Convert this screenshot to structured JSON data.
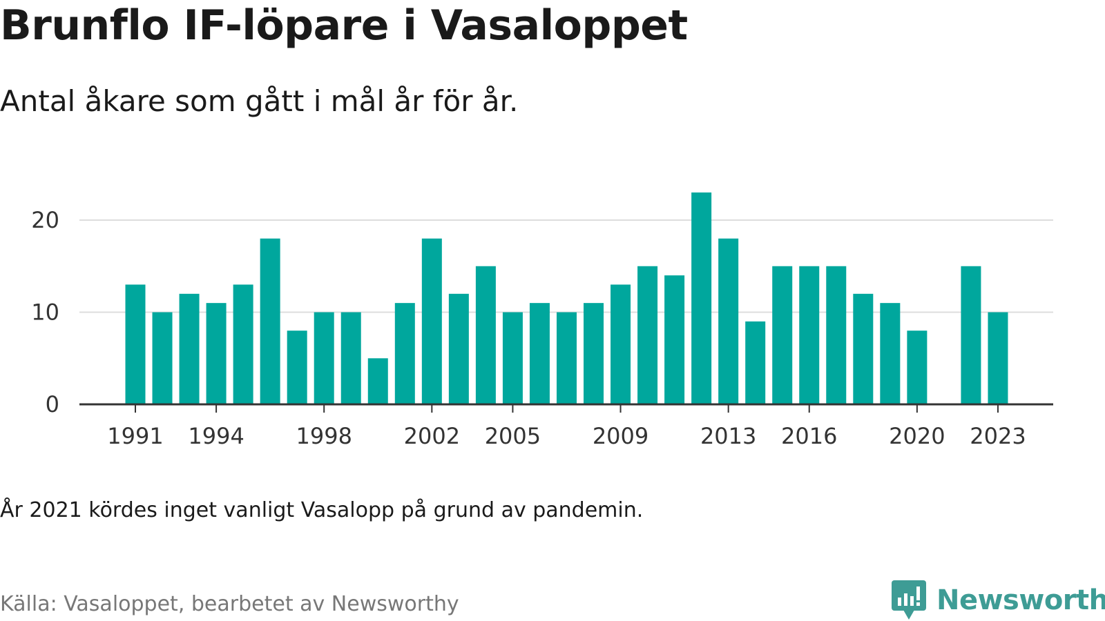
{
  "title": "Brunflo IF-löpare i Vasaloppet",
  "subtitle": "Antal åkare som gått i mål år för år.",
  "note": "År 2021 kördes inget vanligt Vasalopp på grund av pandemin.",
  "source": "Källa: Vasaloppet, bearbetet av Newsworthy",
  "brand": "Newsworthy",
  "colors": {
    "bar": "#00a79d",
    "grid": "#dddddd",
    "axis": "#333333",
    "brand": "#3e9c95"
  },
  "icons": {
    "brand_logo": "newsworthy-logo-icon"
  },
  "chart_data": {
    "type": "bar",
    "x": [
      1991,
      1992,
      1993,
      1994,
      1995,
      1996,
      1997,
      1998,
      1999,
      2000,
      2001,
      2002,
      2003,
      2004,
      2005,
      2006,
      2007,
      2008,
      2009,
      2010,
      2011,
      2012,
      2013,
      2014,
      2015,
      2016,
      2017,
      2018,
      2019,
      2020,
      2021,
      2022,
      2023
    ],
    "values": [
      13,
      10,
      12,
      11,
      13,
      18,
      8,
      10,
      10,
      5,
      11,
      18,
      12,
      15,
      10,
      11,
      10,
      11,
      13,
      15,
      14,
      23,
      18,
      9,
      15,
      15,
      15,
      12,
      11,
      8,
      null,
      15,
      10
    ],
    "x_tick_labels": [
      "1991",
      "1994",
      "1998",
      "2002",
      "2005",
      "2009",
      "2013",
      "2016",
      "2020",
      "2023"
    ],
    "y_ticks": [
      0,
      10,
      20
    ],
    "ylim": [
      0,
      23
    ],
    "grid": true,
    "legend": "none"
  }
}
